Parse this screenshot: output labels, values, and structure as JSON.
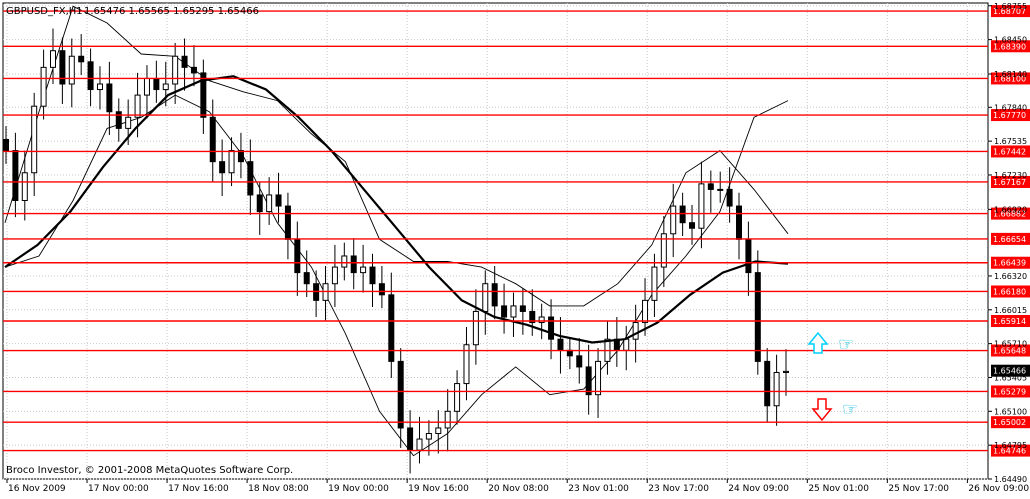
{
  "header": {
    "symbol": "GBPUSD_FX,H1",
    "ohlc": "1.65476 1.65565 1.65295 1.65466"
  },
  "footer": {
    "copyright": "Broco Investor, © 2001-2008 MetaQuotes Software Corp."
  },
  "colors": {
    "background": "#ffffff",
    "chart_area": "#ffffff",
    "border": "#000000",
    "grid": "#c8c8c8",
    "candles": "#000000",
    "moving_average": "#000000",
    "bollinger": "#000000",
    "level_line": "#ff0000",
    "level_tag": "#ff0000",
    "level_tag_text": "#ffffff",
    "current_price_tag": "#000000",
    "up_arrow": "#00d0ff",
    "down_arrow": "#ff0000",
    "hand_icon": "#00b8d8"
  },
  "chart_data": {
    "type": "candlestick",
    "title": "GBPUSD_FX,H1",
    "timeframe": "H1",
    "ylim": [
      1.6449,
      1.6878
    ],
    "grid": true,
    "x_labels": [
      "16 Nov 2009",
      "17 Nov 00:00",
      "17 Nov 16:00",
      "18 Nov 08:00",
      "19 Nov 00:00",
      "19 Nov 16:00",
      "20 Nov 08:00",
      "23 Nov 01:00",
      "23 Nov 17:00",
      "24 Nov 09:00",
      "25 Nov 01:00",
      "25 Nov 17:00",
      "26 Nov 09:00"
    ],
    "y_ticks": [
      "1.68755",
      "1.68450",
      "1.68140",
      "1.67840",
      "1.67535",
      "1.67230",
      "1.66920",
      "1.66320",
      "1.66015",
      "1.65710",
      "1.65405",
      "1.65100",
      "1.64795",
      "1.64490"
    ],
    "levels": [
      "1.68707",
      "1.68390",
      "1.68100",
      "1.67770",
      "1.67442",
      "1.67167",
      "1.66882",
      "1.66654",
      "1.66439",
      "1.66180",
      "1.65914",
      "1.65648",
      "1.65279",
      "1.65002",
      "1.64746"
    ],
    "current_price": "1.65466",
    "close_path": [
      1.6745,
      1.67,
      1.6725,
      1.6785,
      1.682,
      1.6835,
      1.6805,
      1.683,
      1.6825,
      1.68,
      1.6805,
      1.678,
      1.6765,
      1.6775,
      1.6795,
      1.681,
      1.68,
      1.6805,
      1.683,
      1.682,
      1.6815,
      1.6775,
      1.6735,
      1.6725,
      1.6745,
      1.6735,
      1.6705,
      1.669,
      1.6705,
      1.6695,
      1.6665,
      1.6635,
      1.6625,
      1.661,
      1.6625,
      1.664,
      1.665,
      1.6635,
      1.664,
      1.6625,
      1.6615,
      1.6555,
      1.6495,
      1.6475,
      1.6485,
      1.649,
      1.6495,
      1.651,
      1.6535,
      1.657,
      1.66,
      1.6625,
      1.6605,
      1.6595,
      1.6605,
      1.66,
      1.659,
      1.6595,
      1.6575,
      1.6565,
      1.656,
      1.655,
      1.6525,
      1.6555,
      1.6575,
      1.6565,
      1.6575,
      1.659,
      1.661,
      1.664,
      1.667,
      1.6695,
      1.668,
      1.6675,
      1.6715,
      1.671,
      1.671,
      1.6695,
      1.6665,
      1.6635,
      1.6555,
      1.6515,
      1.6545,
      1.6546
    ],
    "moving_average": [
      1.664,
      1.666,
      1.669,
      1.673,
      1.6765,
      1.6795,
      1.6808,
      1.6812,
      1.68,
      1.6775,
      1.6745,
      1.671,
      1.6675,
      1.664,
      1.661,
      1.6595,
      1.6588,
      1.6578,
      1.6572,
      1.6575,
      1.659,
      1.6615,
      1.6635,
      1.6645,
      1.6643
    ],
    "bollinger_upper": [
      1.668,
      1.678,
      1.6875,
      1.686,
      1.6832,
      1.683,
      1.6808,
      1.6798,
      1.679,
      1.676,
      1.6735,
      1.6665,
      1.6645,
      1.6645,
      1.664,
      1.6625,
      1.6605,
      1.6605,
      1.6625,
      1.666,
      1.6725,
      1.6745,
      1.671,
      1.667
    ],
    "bollinger_lower": [
      1.664,
      1.665,
      1.67,
      1.6765,
      1.6775,
      1.6795,
      1.678,
      1.674,
      1.668,
      1.664,
      1.658,
      1.651,
      1.647,
      1.649,
      1.6525,
      1.655,
      1.6525,
      1.653,
      1.6565,
      1.6615,
      1.665,
      1.669,
      1.6775,
      1.679
    ],
    "annotations": [
      {
        "type": "arrow-up",
        "color": "up_arrow"
      },
      {
        "type": "arrow-down",
        "color": "down_arrow"
      }
    ]
  }
}
